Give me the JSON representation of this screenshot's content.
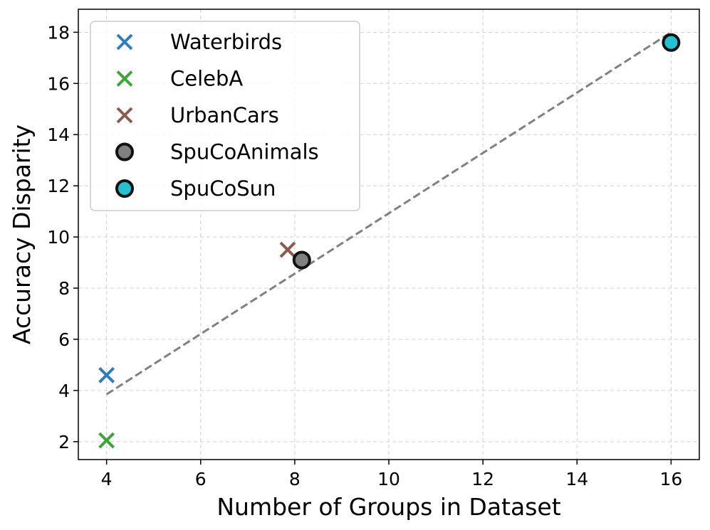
{
  "chart_data": {
    "type": "scatter",
    "xlabel": "Number of Groups in Dataset",
    "ylabel": "Accuracy Disparity",
    "xlim": [
      3.4,
      16.6
    ],
    "ylim": [
      1.3,
      18.9
    ],
    "xticks": [
      4,
      6,
      8,
      10,
      12,
      14,
      16
    ],
    "yticks": [
      2,
      4,
      6,
      8,
      10,
      12,
      14,
      16,
      18
    ],
    "grid": true,
    "legend_position": "top-left",
    "series": [
      {
        "name": "Waterbirds",
        "marker": "x",
        "color": "#2f7ebc",
        "x": [
          4
        ],
        "y": [
          4.6
        ]
      },
      {
        "name": "CelebA",
        "marker": "x",
        "color": "#3ea53a",
        "x": [
          4
        ],
        "y": [
          2.05
        ]
      },
      {
        "name": "UrbanCars",
        "marker": "x",
        "color": "#8c5a4f",
        "x": [
          7.85
        ],
        "y": [
          9.5
        ]
      },
      {
        "name": "SpuCoAnimals",
        "marker": "o",
        "color": "#808080",
        "x": [
          8.15
        ],
        "y": [
          9.1
        ]
      },
      {
        "name": "SpuCoSun",
        "marker": "o",
        "color": "#26c0d3",
        "x": [
          16
        ],
        "y": [
          17.6
        ]
      }
    ],
    "trendline": {
      "x": [
        4,
        16
      ],
      "y": [
        3.85,
        18.0
      ],
      "style": "dashed",
      "color": "#808080"
    }
  }
}
